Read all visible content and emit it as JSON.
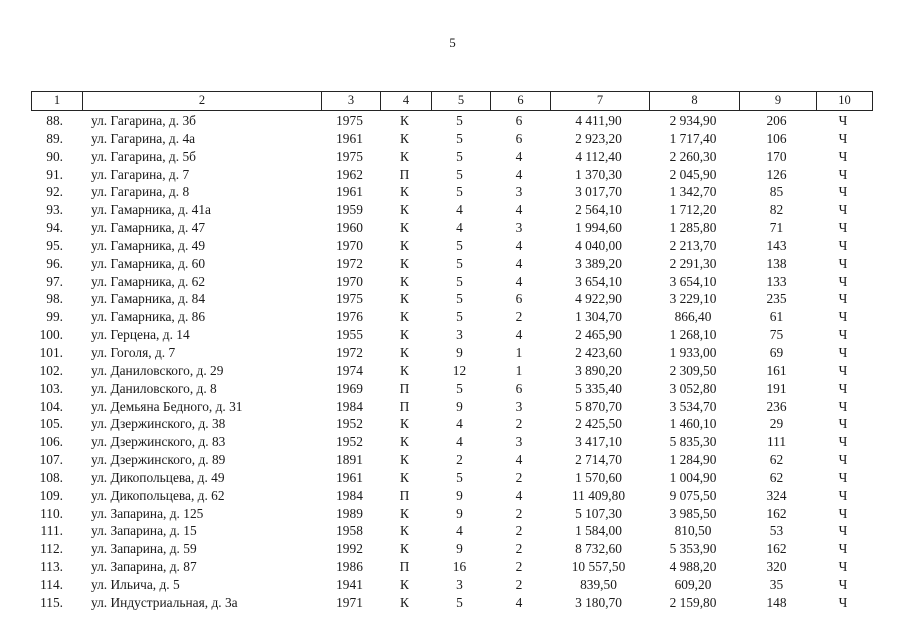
{
  "page_number": "5",
  "table": {
    "columns": [
      "1",
      "2",
      "3",
      "4",
      "5",
      "6",
      "7",
      "8",
      "9",
      "10"
    ],
    "rows": [
      [
        "88.",
        "ул. Гагарина, д. 3б",
        "1975",
        "К",
        "5",
        "6",
        "4 411,90",
        "2 934,90",
        "206",
        "Ч"
      ],
      [
        "89.",
        "ул. Гагарина, д. 4а",
        "1961",
        "К",
        "5",
        "6",
        "2 923,20",
        "1 717,40",
        "106",
        "Ч"
      ],
      [
        "90.",
        "ул. Гагарина, д. 5б",
        "1975",
        "К",
        "5",
        "4",
        "4 112,40",
        "2 260,30",
        "170",
        "Ч"
      ],
      [
        "91.",
        "ул. Гагарина, д. 7",
        "1962",
        "П",
        "5",
        "4",
        "1 370,30",
        "2 045,90",
        "126",
        "Ч"
      ],
      [
        "92.",
        "ул. Гагарина, д. 8",
        "1961",
        "К",
        "5",
        "3",
        "3 017,70",
        "1 342,70",
        "85",
        "Ч"
      ],
      [
        "93.",
        "ул. Гамарника, д. 41а",
        "1959",
        "К",
        "4",
        "4",
        "2 564,10",
        "1 712,20",
        "82",
        "Ч"
      ],
      [
        "94.",
        "ул. Гамарника, д. 47",
        "1960",
        "К",
        "4",
        "3",
        "1 994,60",
        "1 285,80",
        "71",
        "Ч"
      ],
      [
        "95.",
        "ул. Гамарника, д. 49",
        "1970",
        "К",
        "5",
        "4",
        "4 040,00",
        "2 213,70",
        "143",
        "Ч"
      ],
      [
        "96.",
        "ул. Гамарника, д. 60",
        "1972",
        "К",
        "5",
        "4",
        "3 389,20",
        "2 291,30",
        "138",
        "Ч"
      ],
      [
        "97.",
        "ул. Гамарника, д. 62",
        "1970",
        "К",
        "5",
        "4",
        "3 654,10",
        "3 654,10",
        "133",
        "Ч"
      ],
      [
        "98.",
        "ул. Гамарника, д. 84",
        "1975",
        "К",
        "5",
        "6",
        "4 922,90",
        "3 229,10",
        "235",
        "Ч"
      ],
      [
        "99.",
        "ул. Гамарника, д. 86",
        "1976",
        "К",
        "5",
        "2",
        "1 304,70",
        "866,40",
        "61",
        "Ч"
      ],
      [
        "100.",
        "ул. Герцена, д. 14",
        "1955",
        "К",
        "3",
        "4",
        "2 465,90",
        "1 268,10",
        "75",
        "Ч"
      ],
      [
        "101.",
        "ул. Гоголя, д. 7",
        "1972",
        "К",
        "9",
        "1",
        "2 423,60",
        "1 933,00",
        "69",
        "Ч"
      ],
      [
        "102.",
        "ул. Даниловского, д. 29",
        "1974",
        "К",
        "12",
        "1",
        "3 890,20",
        "2 309,50",
        "161",
        "Ч"
      ],
      [
        "103.",
        "ул. Даниловского, д. 8",
        "1969",
        "П",
        "5",
        "6",
        "5 335,40",
        "3 052,80",
        "191",
        "Ч"
      ],
      [
        "104.",
        "ул. Демьяна Бедного, д. 31",
        "1984",
        "П",
        "9",
        "3",
        "5 870,70",
        "3 534,70",
        "236",
        "Ч"
      ],
      [
        "105.",
        "ул. Дзержинского, д. 38",
        "1952",
        "К",
        "4",
        "2",
        "2 425,50",
        "1 460,10",
        "29",
        "Ч"
      ],
      [
        "106.",
        "ул. Дзержинского, д. 83",
        "1952",
        "К",
        "4",
        "3",
        "3 417,10",
        "5 835,30",
        "111",
        "Ч"
      ],
      [
        "107.",
        "ул. Дзержинского, д. 89",
        "1891",
        "К",
        "2",
        "4",
        "2 714,70",
        "1 284,90",
        "62",
        "Ч"
      ],
      [
        "108.",
        "ул. Дикопольцева, д. 49",
        "1961",
        "К",
        "5",
        "2",
        "1 570,60",
        "1 004,90",
        "62",
        "Ч"
      ],
      [
        "109.",
        "ул. Дикопольцева, д. 62",
        "1984",
        "П",
        "9",
        "4",
        "11 409,80",
        "9 075,50",
        "324",
        "Ч"
      ],
      [
        "110.",
        "ул. Запарина, д. 125",
        "1989",
        "К",
        "9",
        "2",
        "5 107,30",
        "3 985,50",
        "162",
        "Ч"
      ],
      [
        "111.",
        "ул. Запарина, д. 15",
        "1958",
        "К",
        "4",
        "2",
        "1 584,00",
        "810,50",
        "53",
        "Ч"
      ],
      [
        "112.",
        "ул. Запарина, д. 59",
        "1992",
        "К",
        "9",
        "2",
        "8 732,60",
        "5 353,90",
        "162",
        "Ч"
      ],
      [
        "113.",
        "ул. Запарина, д. 87",
        "1986",
        "П",
        "16",
        "2",
        "10 557,50",
        "4 988,20",
        "320",
        "Ч"
      ],
      [
        "114.",
        "ул. Ильича, д. 5",
        "1941",
        "К",
        "3",
        "2",
        "839,50",
        "609,20",
        "35",
        "Ч"
      ],
      [
        "115.",
        "ул. Индустриальная, д. 3а",
        "1971",
        "К",
        "5",
        "4",
        "3 180,70",
        "2 159,80",
        "148",
        "Ч"
      ]
    ]
  }
}
